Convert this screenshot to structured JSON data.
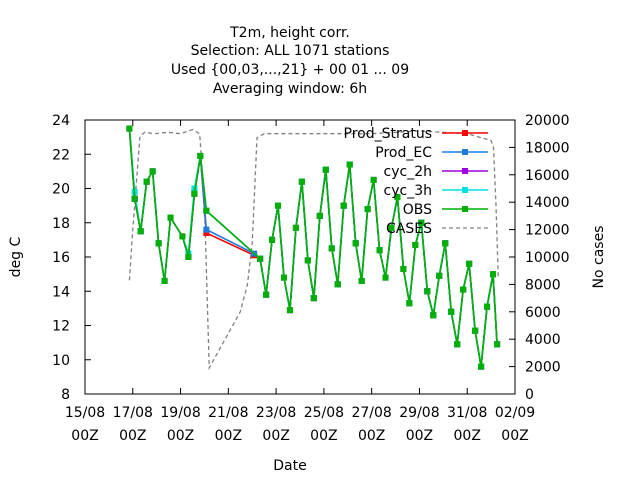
{
  "chart_data": {
    "type": "line",
    "title": [
      "T2m, height corr.",
      "Selection: ALL    1071 stations",
      "Used {00,03,...,21} + 00 01 ... 09",
      "Averaging window:  6h"
    ],
    "xlabel": "Date",
    "ylabel": "deg C",
    "y2label": "No cases",
    "x_ticks": [
      {
        "line1": "15/08",
        "line2": "00Z"
      },
      {
        "line1": "17/08",
        "line2": "00Z"
      },
      {
        "line1": "19/08",
        "line2": "00Z"
      },
      {
        "line1": "21/08",
        "line2": "00Z"
      },
      {
        "line1": "23/08",
        "line2": "00Z"
      },
      {
        "line1": "25/08",
        "line2": "00Z"
      },
      {
        "line1": "27/08",
        "line2": "00Z"
      },
      {
        "line1": "29/08",
        "line2": "00Z"
      },
      {
        "line1": "31/08",
        "line2": "00Z"
      },
      {
        "line1": "02/09",
        "line2": "00Z"
      }
    ],
    "xlim_days": [
      0,
      18
    ],
    "ylim": [
      8,
      24
    ],
    "y_ticks": [
      8,
      10,
      12,
      14,
      16,
      18,
      20,
      22,
      24
    ],
    "y2lim": [
      0,
      20000
    ],
    "y2_ticks": [
      0,
      2000,
      4000,
      6000,
      8000,
      10000,
      12000,
      14000,
      16000,
      18000,
      20000
    ],
    "grid": false,
    "legend_position": "top-right",
    "obs": {
      "t": [
        1.86,
        2.08,
        2.33,
        2.58,
        2.83,
        3.08,
        3.33,
        3.58,
        4.08,
        4.33,
        4.58,
        4.83,
        5.08,
        7.33,
        7.58,
        7.83,
        8.08,
        8.33,
        8.58,
        8.83,
        9.08,
        9.33,
        9.58,
        9.83,
        10.08,
        10.33,
        10.58,
        10.83,
        11.08,
        11.33,
        11.58,
        11.83,
        12.08,
        12.33,
        12.58,
        12.83,
        13.08,
        13.33,
        13.58,
        13.83,
        14.08,
        14.33,
        14.58,
        14.83,
        15.08,
        15.33,
        15.58,
        15.83,
        16.08,
        16.33,
        16.58,
        16.83,
        17.08,
        17.25
      ],
      "values": [
        23.5,
        19.4,
        17.5,
        20.4,
        21.0,
        16.8,
        14.6,
        18.3,
        17.2,
        16.0,
        19.7,
        21.9,
        18.7,
        15.9,
        13.8,
        17.0,
        19.0,
        14.8,
        12.9,
        17.7,
        20.4,
        15.8,
        13.6,
        18.4,
        21.1,
        16.5,
        14.4,
        19.0,
        21.4,
        16.8,
        14.6,
        18.8,
        20.5,
        16.4,
        14.8,
        17.7,
        19.5,
        15.3,
        13.3,
        16.7,
        18.0,
        14.0,
        12.6,
        14.9,
        16.8,
        12.8,
        10.9,
        14.1,
        15.6,
        11.7,
        9.6,
        13.1,
        15.0,
        10.9
      ]
    },
    "series": [
      {
        "name": "Prod_Stratus",
        "color": "#ff0000"
      },
      {
        "name": "Prod_EC",
        "color": "#1e7be0"
      },
      {
        "name": "cyc_2h",
        "color": "#a000e0"
      },
      {
        "name": "cyc_3h",
        "color": "#00e0e0"
      },
      {
        "name": "OBS",
        "color": "#00b000"
      },
      {
        "name": "CASES",
        "color": "#808080"
      }
    ],
    "model_offsets": {
      "Prod_Stratus": {
        "t": [
          5.08,
          7.08
        ],
        "values": [
          17.4,
          16.1
        ]
      },
      "Prod_EC": {
        "t": [
          5.08,
          7.08
        ],
        "values": [
          17.6,
          16.2
        ]
      },
      "cyc_3h": {
        "t": [
          2.08,
          4.33,
          4.58
        ],
        "values": [
          19.8,
          16.2,
          20.0
        ]
      }
    },
    "cases": {
      "t": [
        1.86,
        2.0,
        2.3,
        2.5,
        2.9,
        3.5,
        4.0,
        4.5,
        4.8,
        5.0,
        5.2,
        6.5,
        6.8,
        7.0,
        7.2,
        7.5,
        8.0,
        10.0,
        12.0,
        14.0,
        16.0,
        17.0,
        17.1,
        17.2,
        17.3
      ],
      "values": [
        8300,
        12000,
        18800,
        19100,
        19000,
        19100,
        19000,
        19300,
        19000,
        14000,
        1900,
        6000,
        8000,
        11000,
        18700,
        19000,
        19000,
        19000,
        19000,
        19200,
        19000,
        18500,
        18000,
        14000,
        8500
      ]
    }
  }
}
